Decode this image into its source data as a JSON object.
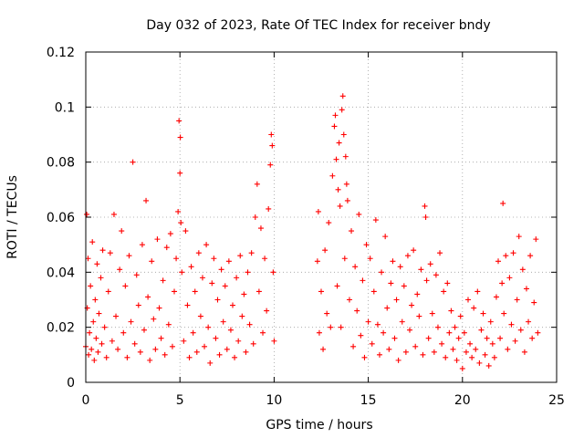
{
  "chart_data": {
    "type": "scatter",
    "title": "Day 032 of 2023, Rate Of TEC Index for receiver bndy",
    "xlabel": "GPS time / hours",
    "ylabel": "ROTI / TECUs",
    "xlim": [
      0,
      25
    ],
    "ylim": [
      0,
      0.12
    ],
    "xticks": [
      0,
      5,
      10,
      15,
      20,
      25
    ],
    "xtick_labels": [
      "0",
      "5",
      "10",
      "15",
      "20",
      "25"
    ],
    "yticks": [
      0,
      0.02,
      0.04,
      0.06,
      0.08,
      0.1,
      0.12
    ],
    "ytick_labels": [
      "0",
      "0.02",
      "0.04",
      "0.06",
      "0.08",
      "0.1",
      "0.12"
    ],
    "grid": true,
    "marker": "+",
    "color": "#ff0000",
    "series": [
      {
        "points": [
          [
            0.0,
            0.013
          ],
          [
            0.05,
            0.061
          ],
          [
            0.08,
            0.027
          ],
          [
            0.12,
            0.045
          ],
          [
            0.15,
            0.01
          ],
          [
            0.2,
            0.018
          ],
          [
            0.25,
            0.035
          ],
          [
            0.3,
            0.012
          ],
          [
            0.35,
            0.051
          ],
          [
            0.4,
            0.022
          ],
          [
            0.45,
            0.008
          ],
          [
            0.5,
            0.03
          ],
          [
            0.55,
            0.016
          ],
          [
            0.6,
            0.043
          ],
          [
            0.65,
            0.011
          ],
          [
            0.7,
            0.025
          ],
          [
            0.8,
            0.038
          ],
          [
            0.85,
            0.014
          ],
          [
            0.9,
            0.048
          ],
          [
            1.0,
            0.02
          ],
          [
            1.1,
            0.009
          ],
          [
            1.2,
            0.033
          ],
          [
            1.3,
            0.047
          ],
          [
            1.4,
            0.015
          ],
          [
            1.5,
            0.061
          ],
          [
            1.6,
            0.024
          ],
          [
            1.7,
            0.012
          ],
          [
            1.8,
            0.041
          ],
          [
            1.9,
            0.055
          ],
          [
            2.0,
            0.018
          ],
          [
            2.1,
            0.035
          ],
          [
            2.2,
            0.009
          ],
          [
            2.3,
            0.046
          ],
          [
            2.4,
            0.022
          ],
          [
            2.5,
            0.08
          ],
          [
            2.6,
            0.014
          ],
          [
            2.7,
            0.039
          ],
          [
            2.8,
            0.028
          ],
          [
            2.9,
            0.011
          ],
          [
            3.0,
            0.05
          ],
          [
            3.1,
            0.019
          ],
          [
            3.2,
            0.066
          ],
          [
            3.3,
            0.031
          ],
          [
            3.4,
            0.008
          ],
          [
            3.5,
            0.044
          ],
          [
            3.6,
            0.023
          ],
          [
            3.7,
            0.012
          ],
          [
            3.8,
            0.052
          ],
          [
            3.9,
            0.027
          ],
          [
            4.0,
            0.016
          ],
          [
            4.1,
            0.037
          ],
          [
            4.2,
            0.01
          ],
          [
            4.3,
            0.049
          ],
          [
            4.4,
            0.021
          ],
          [
            4.5,
            0.054
          ],
          [
            4.6,
            0.013
          ],
          [
            4.7,
            0.033
          ],
          [
            4.8,
            0.045
          ],
          [
            4.9,
            0.062
          ],
          [
            4.95,
            0.095
          ],
          [
            5.0,
            0.076
          ],
          [
            5.02,
            0.089
          ],
          [
            5.05,
            0.058
          ],
          [
            5.1,
            0.04
          ],
          [
            5.2,
            0.015
          ],
          [
            5.3,
            0.055
          ],
          [
            5.4,
            0.028
          ],
          [
            5.5,
            0.009
          ],
          [
            5.6,
            0.042
          ],
          [
            5.7,
            0.018
          ],
          [
            5.8,
            0.033
          ],
          [
            5.9,
            0.011
          ],
          [
            6.0,
            0.047
          ],
          [
            6.1,
            0.024
          ],
          [
            6.2,
            0.038
          ],
          [
            6.3,
            0.013
          ],
          [
            6.4,
            0.05
          ],
          [
            6.5,
            0.02
          ],
          [
            6.6,
            0.007
          ],
          [
            6.7,
            0.036
          ],
          [
            6.8,
            0.045
          ],
          [
            6.9,
            0.016
          ],
          [
            7.0,
            0.03
          ],
          [
            7.1,
            0.01
          ],
          [
            7.2,
            0.041
          ],
          [
            7.3,
            0.022
          ],
          [
            7.4,
            0.035
          ],
          [
            7.5,
            0.012
          ],
          [
            7.6,
            0.044
          ],
          [
            7.7,
            0.019
          ],
          [
            7.8,
            0.028
          ],
          [
            7.9,
            0.009
          ],
          [
            8.0,
            0.038
          ],
          [
            8.1,
            0.015
          ],
          [
            8.2,
            0.046
          ],
          [
            8.3,
            0.024
          ],
          [
            8.4,
            0.032
          ],
          [
            8.5,
            0.011
          ],
          [
            8.6,
            0.04
          ],
          [
            8.7,
            0.021
          ],
          [
            8.8,
            0.047
          ],
          [
            8.9,
            0.014
          ],
          [
            9.0,
            0.06
          ],
          [
            9.1,
            0.072
          ],
          [
            9.2,
            0.033
          ],
          [
            9.3,
            0.056
          ],
          [
            9.4,
            0.018
          ],
          [
            9.5,
            0.045
          ],
          [
            9.6,
            0.026
          ],
          [
            9.7,
            0.063
          ],
          [
            9.8,
            0.079
          ],
          [
            9.85,
            0.09
          ],
          [
            9.9,
            0.086
          ],
          [
            9.95,
            0.04
          ],
          [
            10.0,
            0.015
          ],
          [
            12.3,
            0.044
          ],
          [
            12.35,
            0.062
          ],
          [
            12.4,
            0.018
          ],
          [
            12.5,
            0.033
          ],
          [
            12.6,
            0.012
          ],
          [
            12.7,
            0.048
          ],
          [
            12.8,
            0.025
          ],
          [
            12.9,
            0.058
          ],
          [
            13.0,
            0.02
          ],
          [
            13.1,
            0.075
          ],
          [
            13.2,
            0.093
          ],
          [
            13.25,
            0.097
          ],
          [
            13.3,
            0.081
          ],
          [
            13.35,
            0.035
          ],
          [
            13.4,
            0.07
          ],
          [
            13.45,
            0.087
          ],
          [
            13.5,
            0.064
          ],
          [
            13.55,
            0.02
          ],
          [
            13.6,
            0.099
          ],
          [
            13.65,
            0.104
          ],
          [
            13.7,
            0.09
          ],
          [
            13.75,
            0.045
          ],
          [
            13.8,
            0.082
          ],
          [
            13.85,
            0.072
          ],
          [
            13.9,
            0.066
          ],
          [
            14.0,
            0.03
          ],
          [
            14.1,
            0.055
          ],
          [
            14.2,
            0.013
          ],
          [
            14.3,
            0.042
          ],
          [
            14.4,
            0.026
          ],
          [
            14.5,
            0.061
          ],
          [
            14.6,
            0.017
          ],
          [
            14.7,
            0.037
          ],
          [
            14.8,
            0.009
          ],
          [
            14.9,
            0.05
          ],
          [
            15.0,
            0.022
          ],
          [
            15.1,
            0.045
          ],
          [
            15.2,
            0.014
          ],
          [
            15.3,
            0.033
          ],
          [
            15.4,
            0.059
          ],
          [
            15.5,
            0.021
          ],
          [
            15.6,
            0.01
          ],
          [
            15.7,
            0.04
          ],
          [
            15.8,
            0.018
          ],
          [
            15.9,
            0.053
          ],
          [
            16.0,
            0.027
          ],
          [
            16.1,
            0.012
          ],
          [
            16.2,
            0.036
          ],
          [
            16.3,
            0.044
          ],
          [
            16.4,
            0.016
          ],
          [
            16.5,
            0.03
          ],
          [
            16.6,
            0.008
          ],
          [
            16.7,
            0.042
          ],
          [
            16.8,
            0.022
          ],
          [
            16.9,
            0.035
          ],
          [
            17.0,
            0.011
          ],
          [
            17.1,
            0.046
          ],
          [
            17.2,
            0.019
          ],
          [
            17.3,
            0.028
          ],
          [
            17.4,
            0.048
          ],
          [
            17.5,
            0.013
          ],
          [
            17.6,
            0.032
          ],
          [
            17.7,
            0.024
          ],
          [
            17.8,
            0.041
          ],
          [
            17.9,
            0.01
          ],
          [
            18.0,
            0.064
          ],
          [
            18.05,
            0.06
          ],
          [
            18.1,
            0.037
          ],
          [
            18.2,
            0.016
          ],
          [
            18.3,
            0.043
          ],
          [
            18.4,
            0.025
          ],
          [
            18.5,
            0.011
          ],
          [
            18.6,
            0.039
          ],
          [
            18.7,
            0.02
          ],
          [
            18.8,
            0.047
          ],
          [
            18.9,
            0.014
          ],
          [
            19.0,
            0.033
          ],
          [
            19.1,
            0.009
          ],
          [
            19.2,
            0.036
          ],
          [
            19.3,
            0.018
          ],
          [
            19.4,
            0.026
          ],
          [
            19.5,
            0.012
          ],
          [
            19.6,
            0.02
          ],
          [
            19.7,
            0.008
          ],
          [
            19.8,
            0.016
          ],
          [
            19.9,
            0.024
          ],
          [
            20.0,
            0.005
          ],
          [
            20.1,
            0.018
          ],
          [
            20.2,
            0.011
          ],
          [
            20.3,
            0.03
          ],
          [
            20.4,
            0.014
          ],
          [
            20.5,
            0.009
          ],
          [
            20.6,
            0.027
          ],
          [
            20.7,
            0.012
          ],
          [
            20.8,
            0.033
          ],
          [
            20.9,
            0.007
          ],
          [
            21.0,
            0.019
          ],
          [
            21.1,
            0.025
          ],
          [
            21.2,
            0.01
          ],
          [
            21.3,
            0.016
          ],
          [
            21.4,
            0.006
          ],
          [
            21.5,
            0.022
          ],
          [
            21.6,
            0.014
          ],
          [
            21.7,
            0.009
          ],
          [
            21.8,
            0.031
          ],
          [
            21.9,
            0.044
          ],
          [
            22.0,
            0.016
          ],
          [
            22.1,
            0.036
          ],
          [
            22.15,
            0.065
          ],
          [
            22.2,
            0.025
          ],
          [
            22.3,
            0.046
          ],
          [
            22.4,
            0.012
          ],
          [
            22.5,
            0.038
          ],
          [
            22.6,
            0.021
          ],
          [
            22.7,
            0.047
          ],
          [
            22.8,
            0.015
          ],
          [
            22.9,
            0.03
          ],
          [
            23.0,
            0.053
          ],
          [
            23.1,
            0.019
          ],
          [
            23.2,
            0.041
          ],
          [
            23.3,
            0.011
          ],
          [
            23.4,
            0.034
          ],
          [
            23.5,
            0.022
          ],
          [
            23.6,
            0.046
          ],
          [
            23.7,
            0.016
          ],
          [
            23.8,
            0.029
          ],
          [
            23.9,
            0.052
          ],
          [
            24.0,
            0.018
          ]
        ]
      }
    ]
  }
}
